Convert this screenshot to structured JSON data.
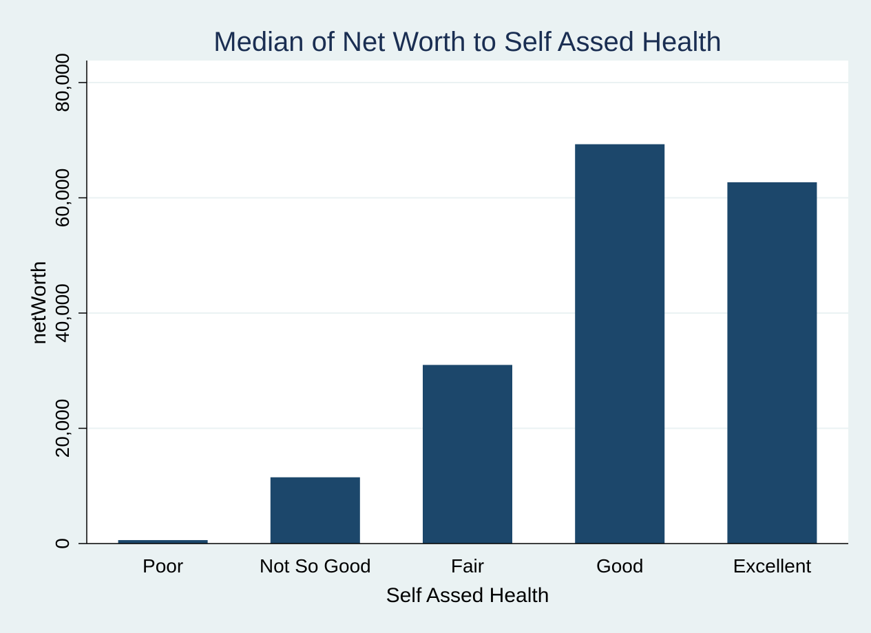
{
  "chart_data": {
    "type": "bar",
    "title": "Median of Net Worth to Self Assed Health",
    "xlabel": "Self Assed Health",
    "ylabel": "netWorth",
    "categories": [
      "Poor",
      "Not So Good",
      "Fair",
      "Good",
      "Excellent"
    ],
    "values": [
      600,
      11500,
      31000,
      69300,
      62700
    ],
    "ylim": [
      0,
      80000
    ],
    "yticks": [
      0,
      20000,
      40000,
      60000,
      80000
    ],
    "ytick_labels": [
      "0",
      "20,000",
      "40,000",
      "60,000",
      "80,000"
    ],
    "grid": true,
    "legend": "none",
    "colors": {
      "bar": "#1c476b",
      "plot_background": "#ffffff",
      "page_background": "#eaf2f3",
      "grid": "#eaf2f3",
      "title": "#1a2e52"
    }
  }
}
